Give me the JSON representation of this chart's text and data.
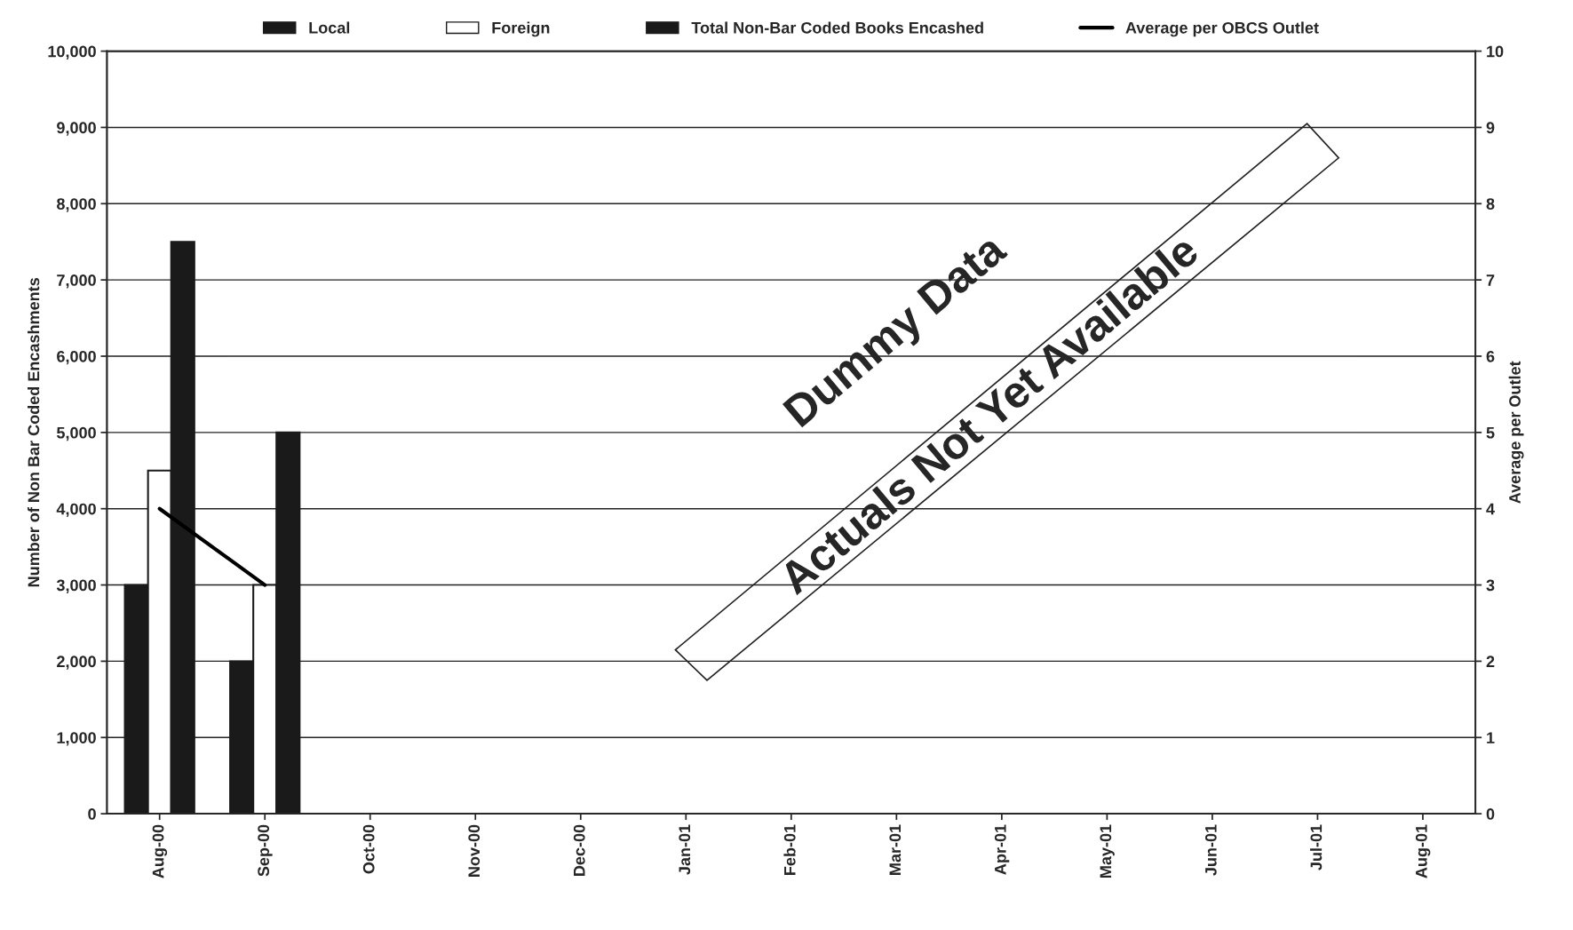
{
  "chart_data": {
    "type": "bar",
    "categories": [
      "Aug-00",
      "Sep-00",
      "Oct-00",
      "Nov-00",
      "Dec-00",
      "Jan-01",
      "Feb-01",
      "Mar-01",
      "Apr-01",
      "May-01",
      "Jun-01",
      "Jul-01",
      "Aug-01"
    ],
    "series": [
      {
        "name": "Local",
        "color": "#1a1a1a",
        "values": [
          3000,
          2000,
          null,
          null,
          null,
          null,
          null,
          null,
          null,
          null,
          null,
          null,
          null
        ]
      },
      {
        "name": "Foreign",
        "color": "#ffffff",
        "values": [
          4500,
          3000,
          null,
          null,
          null,
          null,
          null,
          null,
          null,
          null,
          null,
          null,
          null
        ]
      },
      {
        "name": "Total Non-Bar Coded Books Encashed",
        "color": "#1a1a1a",
        "values": [
          7500,
          5000,
          null,
          null,
          null,
          null,
          null,
          null,
          null,
          null,
          null,
          null,
          null
        ]
      },
      {
        "name": "Average per OBCS Outlet",
        "type": "line",
        "axis": "y2",
        "color": "#000000",
        "values": [
          4,
          3,
          null,
          null,
          null,
          null,
          null,
          null,
          null,
          null,
          null,
          null,
          null
        ]
      }
    ],
    "ylabel": "Number of Non Bar Coded Encashments",
    "y2label": "Average per Outlet",
    "ylim": [
      0,
      10000
    ],
    "yticks": [
      0,
      {
        "value": 1000,
        "label": "1,000"
      },
      {
        "value": 2000,
        "label": "2,000"
      },
      {
        "value": 3000,
        "label": "3,000"
      },
      {
        "value": 4000,
        "label": "4,000"
      },
      {
        "value": 5000,
        "label": "5,000"
      },
      {
        "value": 6000,
        "label": "6,000"
      },
      {
        "value": 7000,
        "label": "7,000"
      },
      {
        "value": 8000,
        "label": "8,000"
      },
      {
        "value": 9000,
        "label": "9,000"
      },
      {
        "value": 10000,
        "label": "10,000"
      }
    ],
    "y2lim": [
      0,
      10
    ],
    "y2ticks": [
      0,
      1,
      2,
      3,
      4,
      5,
      6,
      7,
      8,
      9,
      10
    ],
    "grid": "y",
    "legend": "top",
    "annotations": [
      "Dummy Data",
      "Actuals Not Yet Available"
    ]
  }
}
